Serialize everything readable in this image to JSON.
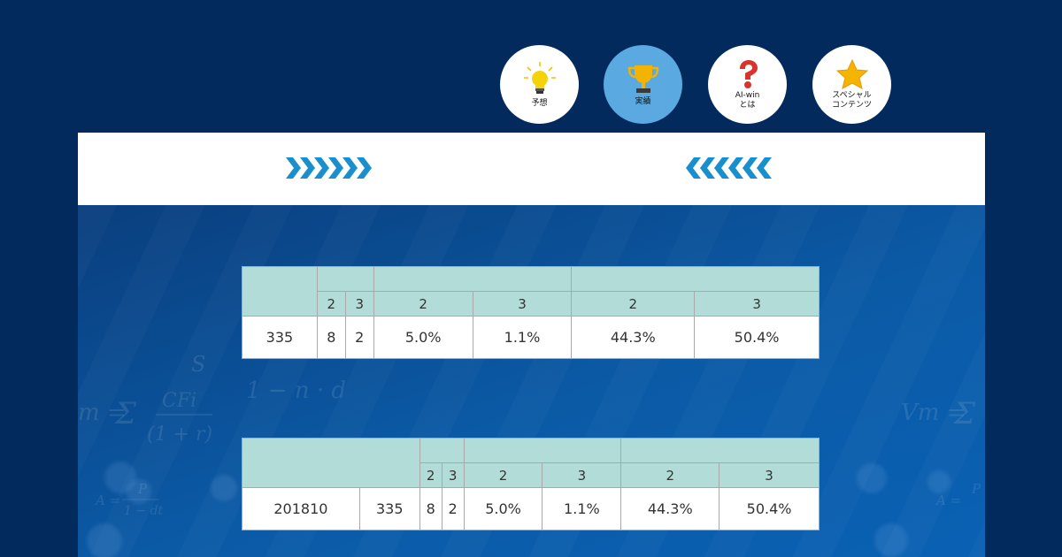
{
  "nav": [
    {
      "label": "予想",
      "icon": "lightbulb-icon",
      "active": false
    },
    {
      "label": "実績",
      "icon": "trophy-icon",
      "active": true
    },
    {
      "label": "AI-win\nとは",
      "icon": "question-mark-icon",
      "active": false
    },
    {
      "label": "スペシャル\nコンテンツ",
      "icon": "star-icon",
      "active": false
    }
  ],
  "colors": {
    "page_bg": "#032a5c",
    "active_nav": "#5aa9e0",
    "chevron": "#1a8fd0",
    "table_header": "#b2dcd8"
  },
  "table1": {
    "sub_headers": [
      "2",
      "3",
      "2",
      "3",
      "2",
      "3"
    ],
    "row": [
      "335",
      "8",
      "2",
      "5.0%",
      "1.1%",
      "44.3%",
      "50.4%"
    ]
  },
  "table2": {
    "sub_headers": [
      "2",
      "3",
      "2",
      "3",
      "2",
      "3"
    ],
    "row": [
      "201810",
      "335",
      "8",
      "2",
      "5.0%",
      "1.1%",
      "44.3%",
      "50.4%"
    ]
  }
}
